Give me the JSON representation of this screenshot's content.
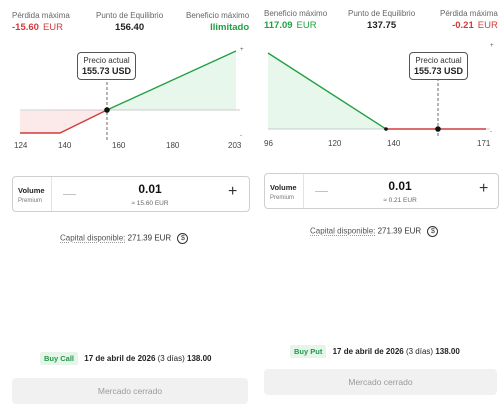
{
  "call_panel": {
    "stats": {
      "max_loss_label": "Pérdida máxima",
      "max_loss_value": "-15.60",
      "max_loss_unit": "EUR",
      "breakeven_label": "Punto de Equilibrio",
      "breakeven_value": "156.40",
      "max_profit_label": "Beneficio máximo",
      "max_profit_value": "Ilimitado"
    },
    "tooltip": {
      "label": "Precio actual",
      "price": "155.73 USD"
    },
    "x_ticks": [
      "124",
      "140",
      "160",
      "180",
      "203"
    ],
    "volume": {
      "label": "Volume",
      "sublabel": "Premium",
      "value": "0.01",
      "premium": "≈ 15.60 EUR"
    },
    "capital": {
      "label": "Capital disponible:",
      "value": "271.39",
      "unit": "EUR"
    },
    "expiry": {
      "type": "Buy Call",
      "date": "17 de abril de 2026",
      "days": "(3 días)",
      "strike": "138.00"
    },
    "market_button": "Mercado cerrado"
  },
  "put_panel": {
    "stats": {
      "max_profit_label": "Beneficio máximo",
      "max_profit_value": "117.09",
      "max_profit_unit": "EUR",
      "breakeven_label": "Punto de Equilibrio",
      "breakeven_value": "137.75",
      "max_loss_label": "Pérdida máxima",
      "max_loss_value": "-0.21",
      "max_loss_unit": "EUR"
    },
    "tooltip": {
      "label": "Precio actual",
      "price": "155.73 USD"
    },
    "x_ticks": [
      "96",
      "120",
      "140",
      "171"
    ],
    "volume": {
      "label": "Volume",
      "sublabel": "Premium",
      "value": "0.01",
      "premium": "≈ 0.21 EUR"
    },
    "capital": {
      "label": "Capital disponible:",
      "value": "271.39",
      "unit": "EUR"
    },
    "expiry": {
      "type": "Buy Put",
      "date": "17 de abril de 2026",
      "days": "(3 días)",
      "strike": "138.00"
    },
    "market_button": "Mercado cerrado"
  },
  "colors": {
    "profit": "#22a043",
    "loss": "#d23b3b",
    "tag_bg": "#e6f4ea"
  },
  "icons": {
    "minus": "minus-icon",
    "plus": "plus-icon",
    "coin": "currency-exchange-icon"
  }
}
